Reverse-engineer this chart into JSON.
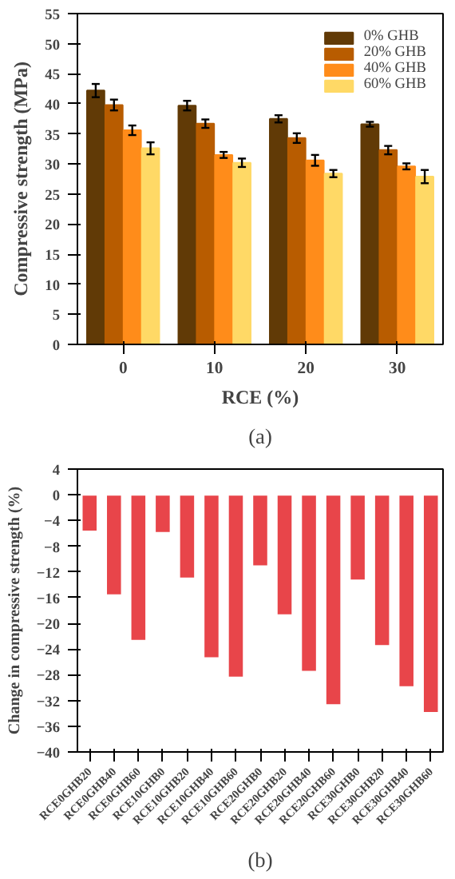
{
  "chart_data": [
    {
      "type": "bar",
      "categories": [
        "0",
        "10",
        "20",
        "30"
      ],
      "xlabel": "RCE (%)",
      "ylabel": "Compressive strength (MPa)",
      "ylim": [
        0,
        55
      ],
      "yticks": [
        0,
        5,
        10,
        15,
        20,
        25,
        30,
        35,
        40,
        45,
        50,
        55
      ],
      "legend": "top right",
      "grid": false,
      "annotations": [
        "(a)"
      ],
      "series": [
        {
          "name": "0% GHB",
          "color": "#613a06",
          "values": [
            42.2,
            39.7,
            37.5,
            36.6
          ],
          "errors": [
            1.1,
            0.8,
            0.6,
            0.4
          ]
        },
        {
          "name": "20% GHB",
          "color": "#b85c00",
          "values": [
            39.8,
            36.7,
            34.3,
            32.3
          ],
          "errors": [
            0.9,
            0.7,
            0.8,
            0.7
          ]
        },
        {
          "name": "40% GHB",
          "color": "#ff8c1a",
          "values": [
            35.6,
            31.5,
            30.6,
            29.6
          ],
          "errors": [
            0.8,
            0.5,
            0.9,
            0.5
          ]
        },
        {
          "name": "60% GHB",
          "color": "#ffd966",
          "values": [
            32.6,
            30.2,
            28.4,
            27.9
          ],
          "errors": [
            1.0,
            0.7,
            0.6,
            1.1
          ]
        }
      ]
    },
    {
      "type": "bar",
      "categories": [
        "RCE0GHB20",
        "RCE0GHB40",
        "RCE0GHB60",
        "RCE10GHB0",
        "RCE10GHB20",
        "RCE10GHB40",
        "RCE10GHB60",
        "RCE20GHB0",
        "RCE20GHB20",
        "RCE20GHB40",
        "RCE20GHB60",
        "RCE30GHB0",
        "RCE30GHB20",
        "RCE30GHB40",
        "RCE30GHB60"
      ],
      "ylabel": "Change in compressive strength (%)",
      "ylim": [
        -40,
        4
      ],
      "yticks": [
        4,
        0,
        -4,
        -8,
        -12,
        -16,
        -20,
        -24,
        -28,
        -32,
        -36,
        -40
      ],
      "grid": false,
      "annotations": [
        "(b)"
      ],
      "series": [
        {
          "color": "#e8454a",
          "values": [
            -5.7,
            -15.6,
            -22.7,
            -5.9,
            -13.0,
            -25.4,
            -28.4,
            -11.1,
            -18.7,
            -27.5,
            -32.7,
            -13.3,
            -23.5,
            -29.9,
            -33.9
          ]
        }
      ]
    }
  ]
}
